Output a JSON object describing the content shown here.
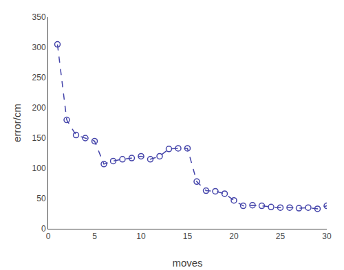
{
  "chart_data": {
    "type": "line",
    "x": [
      1,
      2,
      3,
      4,
      5,
      6,
      7,
      8,
      9,
      10,
      11,
      12,
      13,
      14,
      15,
      16,
      17,
      18,
      19,
      20,
      21,
      22,
      23,
      24,
      25,
      26,
      27,
      28,
      29,
      30
    ],
    "values": [
      305,
      180,
      155,
      150,
      145,
      107,
      112,
      115,
      117,
      120,
      115,
      120,
      132,
      133,
      133,
      78,
      63,
      62,
      58,
      47,
      38,
      39,
      38,
      36,
      35,
      35,
      34,
      35,
      33,
      38
    ],
    "color": "#4444aa",
    "marker": "circle-open",
    "line_style": "dashed",
    "xlabel": "moves",
    "ylabel": "error/cm",
    "xlim": [
      0,
      30
    ],
    "ylim": [
      0,
      350
    ],
    "xticks": [
      0,
      5,
      10,
      15,
      20,
      25,
      30
    ],
    "yticks": [
      0,
      50,
      100,
      150,
      200,
      250,
      300,
      350
    ],
    "grid": false
  }
}
